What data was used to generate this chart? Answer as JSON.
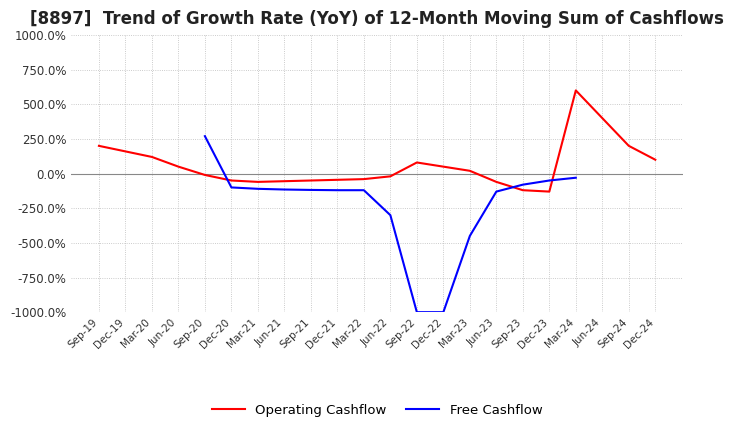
{
  "title": "[8897]  Trend of Growth Rate (YoY) of 12-Month Moving Sum of Cashflows",
  "title_fontsize": 12,
  "ylim": [
    -1000,
    1000
  ],
  "yticks": [
    1000.0,
    750.0,
    500.0,
    250.0,
    0.0,
    -250.0,
    -500.0,
    -750.0,
    -1000.0
  ],
  "operating_color": "#ff0000",
  "free_color": "#0000ff",
  "legend_labels": [
    "Operating Cashflow",
    "Free Cashflow"
  ],
  "background_color": "#ffffff",
  "grid_color": "#bbbbbb",
  "x_dates": [
    "Sep-19",
    "Dec-19",
    "Mar-20",
    "Jun-20",
    "Sep-20",
    "Dec-20",
    "Mar-21",
    "Jun-21",
    "Sep-21",
    "Dec-21",
    "Mar-22",
    "Jun-22",
    "Sep-22",
    "Dec-22",
    "Mar-23",
    "Jun-23",
    "Sep-23",
    "Dec-23",
    "Mar-24",
    "Jun-24",
    "Sep-24",
    "Dec-24"
  ],
  "operating_cashflow": [
    200,
    160,
    120,
    50,
    -10,
    -50,
    -60,
    -55,
    -50,
    -45,
    -40,
    -20,
    80,
    50,
    20,
    -60,
    -120,
    -130,
    600,
    400,
    200,
    100
  ],
  "free_cashflow": [
    null,
    null,
    null,
    null,
    270,
    -100,
    -110,
    -115,
    -118,
    -120,
    -120,
    -300,
    -1000,
    -1000,
    -450,
    -130,
    -80,
    -50,
    -30,
    null,
    null,
    null
  ],
  "zero_line_color": "#888888"
}
